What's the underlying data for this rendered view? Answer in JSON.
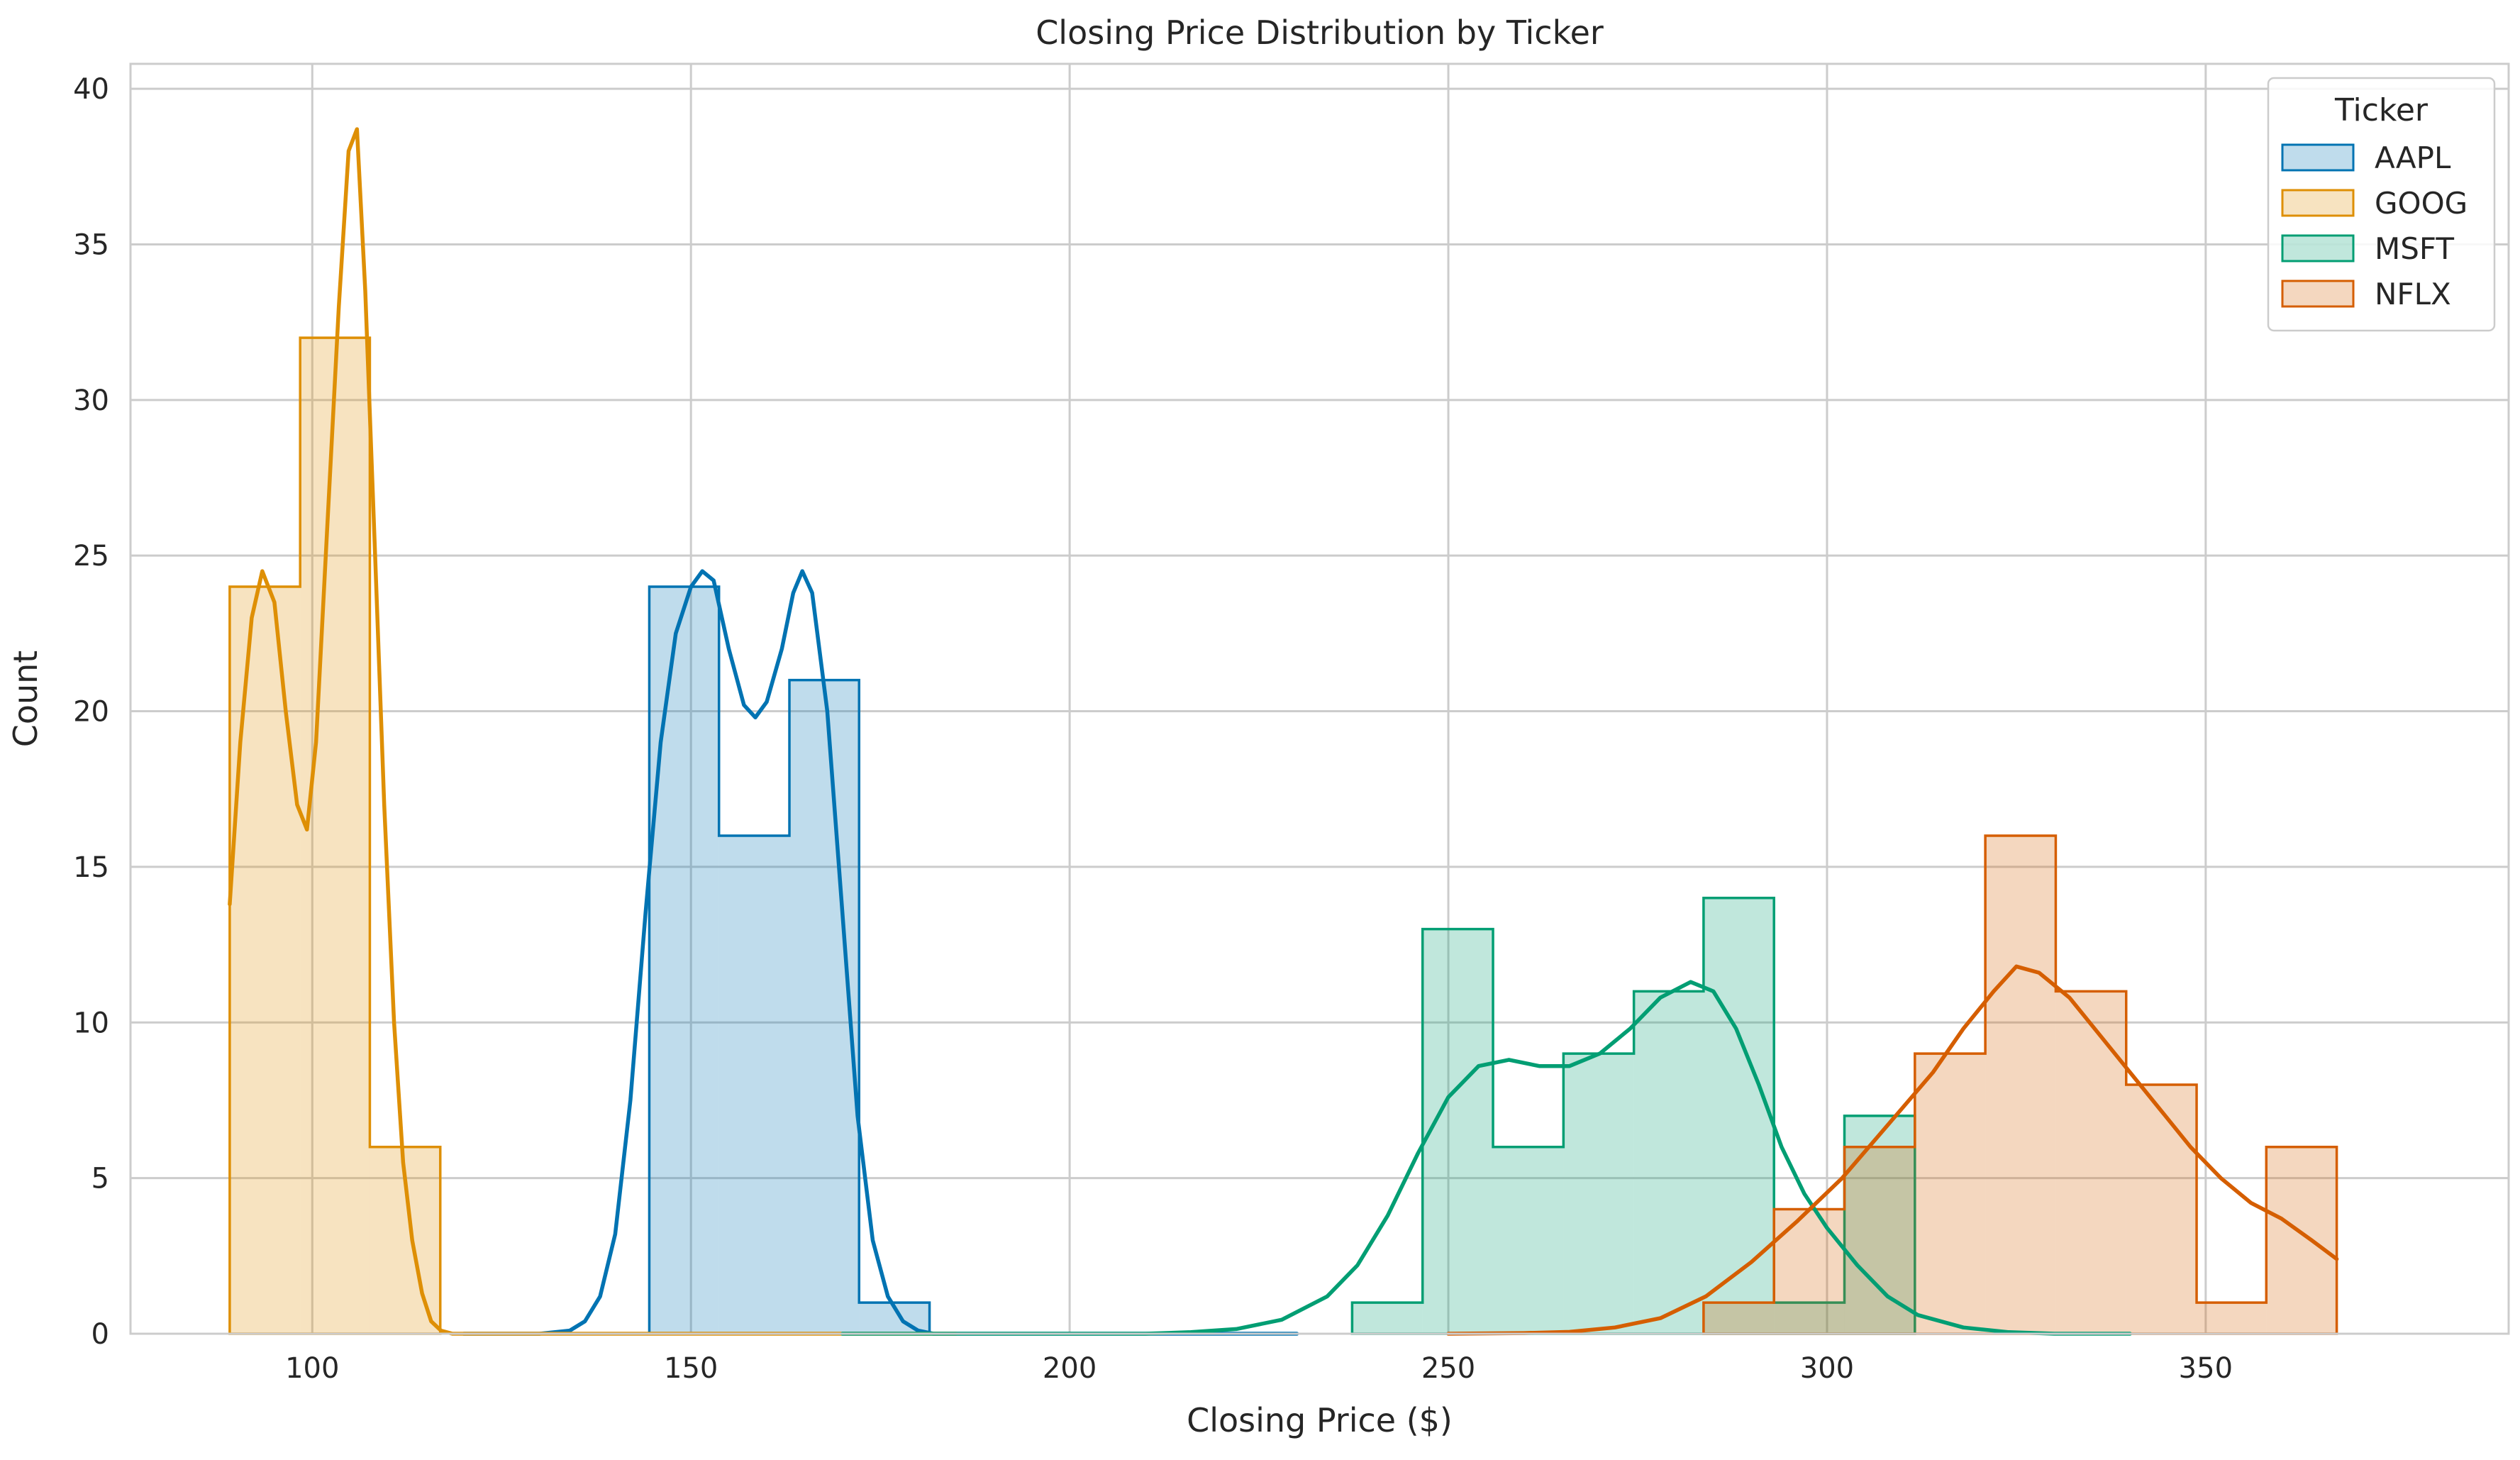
{
  "chart_data": {
    "type": "histogram",
    "title": "Closing Price Distribution by Ticker",
    "xlabel": "Closing Price ($)",
    "ylabel": "Count",
    "xlim": [
      76,
      390
    ],
    "ylim": [
      0,
      40.8
    ],
    "x_ticks": [
      100,
      150,
      200,
      250,
      300,
      350
    ],
    "x_tick_labels": [
      "100",
      "150",
      "200",
      "250",
      "300",
      "350"
    ],
    "y_ticks": [
      0,
      5,
      10,
      15,
      20,
      25,
      30,
      35,
      40
    ],
    "y_tick_labels": [
      "0",
      "5",
      "10",
      "15",
      "20",
      "25",
      "30",
      "35",
      "40"
    ],
    "grid": true,
    "legend": {
      "title": "Ticker",
      "placement": "top-right",
      "entries": [
        "AAPL",
        "GOOG",
        "MSFT",
        "NFLX"
      ]
    },
    "series": [
      {
        "name": "AAPL",
        "color": "#0173b2",
        "bins": [
          {
            "x0": 144.5,
            "x1": 153.7,
            "count": 24
          },
          {
            "x0": 153.7,
            "x1": 163,
            "count": 16
          },
          {
            "x0": 163,
            "x1": 172.2,
            "count": 21
          },
          {
            "x0": 172.2,
            "x1": 181.5,
            "count": 1
          }
        ],
        "kde": [
          [
            120,
            0
          ],
          [
            130,
            0
          ],
          [
            134,
            0.1
          ],
          [
            136,
            0.4
          ],
          [
            138,
            1.2
          ],
          [
            140,
            3.2
          ],
          [
            142,
            7.5
          ],
          [
            144,
            13.5
          ],
          [
            146,
            19
          ],
          [
            148,
            22.5
          ],
          [
            150,
            24
          ],
          [
            151.5,
            24.5
          ],
          [
            153,
            24.2
          ],
          [
            155,
            22
          ],
          [
            157,
            20.2
          ],
          [
            158.5,
            19.8
          ],
          [
            160,
            20.3
          ],
          [
            162,
            22
          ],
          [
            163.5,
            23.8
          ],
          [
            164.7,
            24.5
          ],
          [
            166,
            23.8
          ],
          [
            168,
            20
          ],
          [
            170,
            13.5
          ],
          [
            172,
            7
          ],
          [
            174,
            3
          ],
          [
            176,
            1.2
          ],
          [
            178,
            0.4
          ],
          [
            180,
            0.1
          ],
          [
            182,
            0
          ],
          [
            190,
            0
          ],
          [
            200,
            0
          ],
          [
            210,
            0
          ],
          [
            220,
            0
          ],
          [
            230,
            0
          ]
        ]
      },
      {
        "name": "GOOG",
        "color": "#de8f05",
        "bins": [
          {
            "x0": 89.1,
            "x1": 98.4,
            "count": 24
          },
          {
            "x0": 98.4,
            "x1": 107.6,
            "count": 32
          },
          {
            "x0": 107.6,
            "x1": 116.9,
            "count": 6
          }
        ],
        "kde": [
          [
            89.1,
            13.8
          ],
          [
            90.5,
            19
          ],
          [
            92,
            23
          ],
          [
            93.4,
            24.5
          ],
          [
            95,
            23.5
          ],
          [
            96.5,
            20
          ],
          [
            98,
            17
          ],
          [
            99.3,
            16.2
          ],
          [
            100.5,
            19
          ],
          [
            102,
            26
          ],
          [
            103.5,
            33
          ],
          [
            104.8,
            38
          ],
          [
            105.9,
            38.7
          ],
          [
            107,
            33.5
          ],
          [
            108.3,
            25
          ],
          [
            109.5,
            17
          ],
          [
            110.8,
            10
          ],
          [
            112,
            5.5
          ],
          [
            113.2,
            3
          ],
          [
            114.5,
            1.3
          ],
          [
            115.7,
            0.4
          ],
          [
            117,
            0.1
          ],
          [
            118.5,
            0
          ],
          [
            125,
            0
          ],
          [
            135,
            0
          ],
          [
            145,
            0
          ],
          [
            155,
            0
          ],
          [
            165,
            0
          ],
          [
            175,
            0
          ],
          [
            185,
            0
          ]
        ]
      },
      {
        "name": "MSFT",
        "color": "#029e73",
        "bins": [
          {
            "x0": 237.3,
            "x1": 246.6,
            "count": 1
          },
          {
            "x0": 246.6,
            "x1": 255.9,
            "count": 13
          },
          {
            "x0": 255.9,
            "x1": 265.2,
            "count": 6
          },
          {
            "x0": 265.2,
            "x1": 274.5,
            "count": 9
          },
          {
            "x0": 274.5,
            "x1": 283.7,
            "count": 11
          },
          {
            "x0": 283.7,
            "x1": 293,
            "count": 14
          },
          {
            "x0": 293,
            "x1": 302.3,
            "count": 1
          },
          {
            "x0": 302.3,
            "x1": 311.6,
            "count": 7
          }
        ],
        "kde": [
          [
            170,
            0
          ],
          [
            190,
            0
          ],
          [
            200,
            0
          ],
          [
            210,
            0
          ],
          [
            216,
            0.05
          ],
          [
            222,
            0.15
          ],
          [
            228,
            0.45
          ],
          [
            234,
            1.2
          ],
          [
            238,
            2.2
          ],
          [
            242,
            3.8
          ],
          [
            246,
            5.8
          ],
          [
            250,
            7.6
          ],
          [
            254,
            8.6
          ],
          [
            258,
            8.8
          ],
          [
            262,
            8.6
          ],
          [
            266,
            8.6
          ],
          [
            270,
            9
          ],
          [
            274,
            9.8
          ],
          [
            278,
            10.8
          ],
          [
            282,
            11.3
          ],
          [
            285,
            11
          ],
          [
            288,
            9.8
          ],
          [
            291,
            8
          ],
          [
            294,
            6
          ],
          [
            297,
            4.5
          ],
          [
            300,
            3.4
          ],
          [
            304,
            2.2
          ],
          [
            308,
            1.2
          ],
          [
            312,
            0.6
          ],
          [
            318,
            0.2
          ],
          [
            324,
            0.05
          ],
          [
            330,
            0
          ],
          [
            340,
            0
          ]
        ]
      },
      {
        "name": "NFLX",
        "color": "#d55e00",
        "bins": [
          {
            "x0": 283.7,
            "x1": 293,
            "count": 1
          },
          {
            "x0": 293,
            "x1": 302.3,
            "count": 4
          },
          {
            "x0": 302.3,
            "x1": 311.6,
            "count": 6
          },
          {
            "x0": 311.6,
            "x1": 320.9,
            "count": 9
          },
          {
            "x0": 320.9,
            "x1": 330.2,
            "count": 16
          },
          {
            "x0": 330.2,
            "x1": 339.5,
            "count": 11
          },
          {
            "x0": 339.5,
            "x1": 348.8,
            "count": 8
          },
          {
            "x0": 348.8,
            "x1": 358,
            "count": 1
          },
          {
            "x0": 358,
            "x1": 367.3,
            "count": 6
          }
        ],
        "kde": [
          [
            250,
            0
          ],
          [
            260,
            0.02
          ],
          [
            266,
            0.06
          ],
          [
            272,
            0.2
          ],
          [
            278,
            0.5
          ],
          [
            284,
            1.2
          ],
          [
            290,
            2.3
          ],
          [
            296,
            3.6
          ],
          [
            302,
            5
          ],
          [
            308,
            6.7
          ],
          [
            314,
            8.4
          ],
          [
            318,
            9.8
          ],
          [
            322,
            11
          ],
          [
            325,
            11.8
          ],
          [
            328,
            11.6
          ],
          [
            332,
            10.8
          ],
          [
            336,
            9.6
          ],
          [
            340,
            8.4
          ],
          [
            344,
            7.2
          ],
          [
            348,
            6
          ],
          [
            352,
            5
          ],
          [
            356,
            4.2
          ],
          [
            360,
            3.7
          ],
          [
            364,
            3
          ],
          [
            367.3,
            2.4
          ]
        ]
      }
    ]
  }
}
